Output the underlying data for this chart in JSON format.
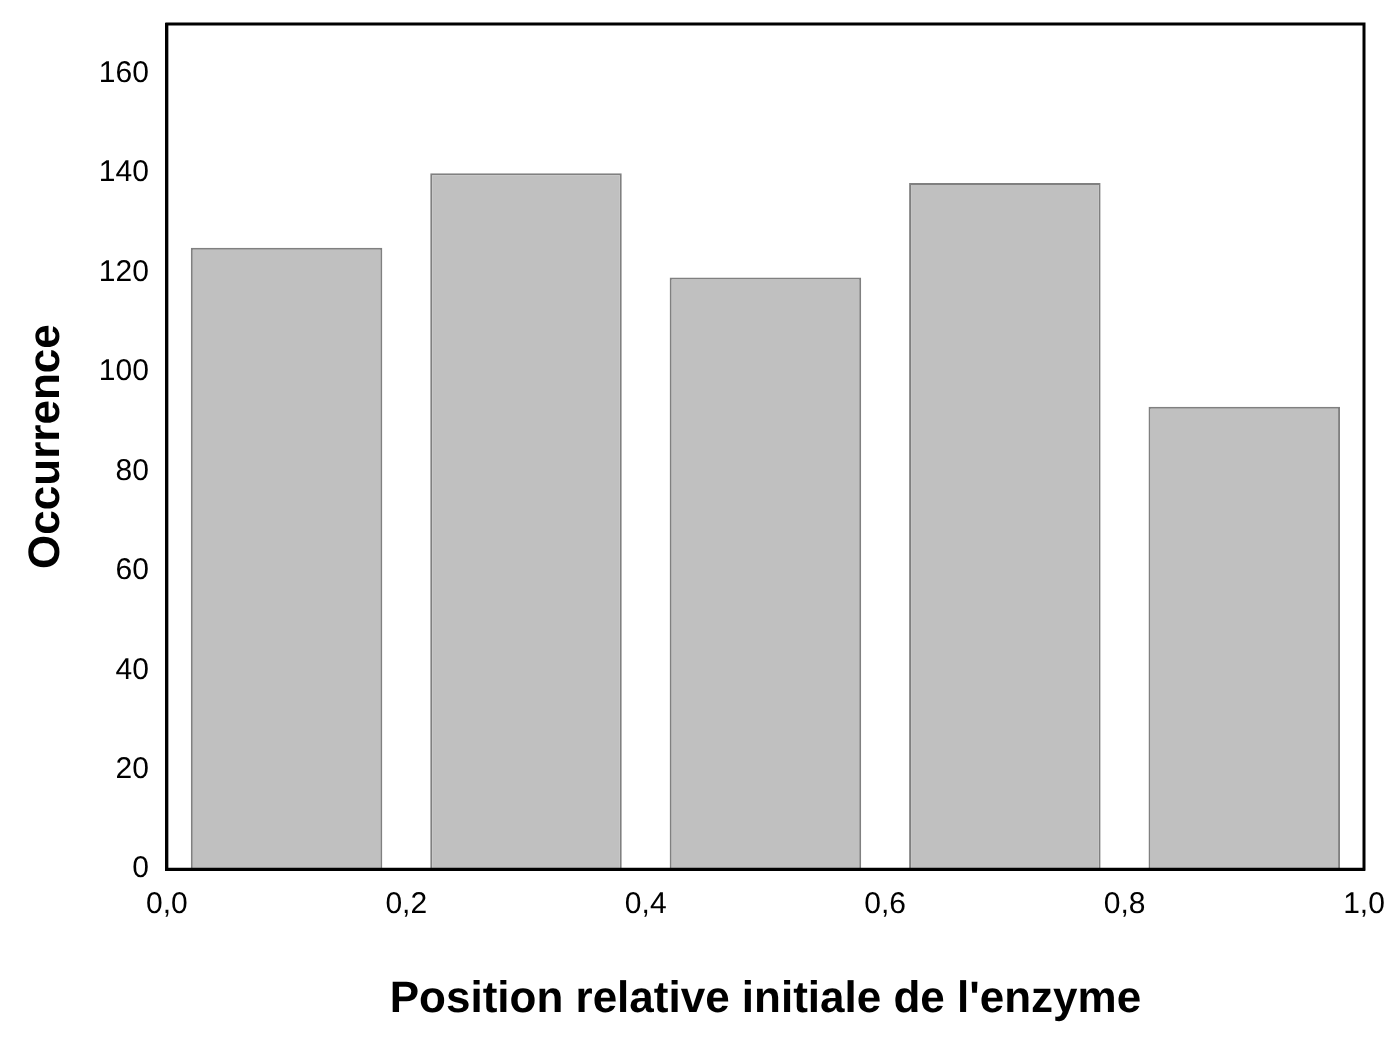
{
  "chart_data": {
    "type": "histogram",
    "xlabel": "Position relative initiale de l'enzyme",
    "ylabel": "Occurrence",
    "bins": [
      0,
      0.2,
      0.4,
      0.6,
      0.8,
      1.0
    ],
    "values": [
      125,
      140,
      119,
      138,
      93
    ],
    "color": "#c0c0c0",
    "xlim": [
      0,
      1.0
    ],
    "xticks": [
      {
        "value": 0,
        "label": "0,0"
      },
      {
        "value": 0.2,
        "label": "0,2"
      },
      {
        "value": 0.4,
        "label": "0,4"
      },
      {
        "value": 0.6,
        "label": "0,6"
      },
      {
        "value": 0.8,
        "label": "0,8"
      },
      {
        "value": 1.0,
        "label": "1,0"
      }
    ],
    "ylim": [
      0,
      170
    ],
    "yticks": [
      0,
      20,
      40,
      60,
      80,
      100,
      120,
      140,
      160
    ],
    "grid": false,
    "legend": false
  }
}
